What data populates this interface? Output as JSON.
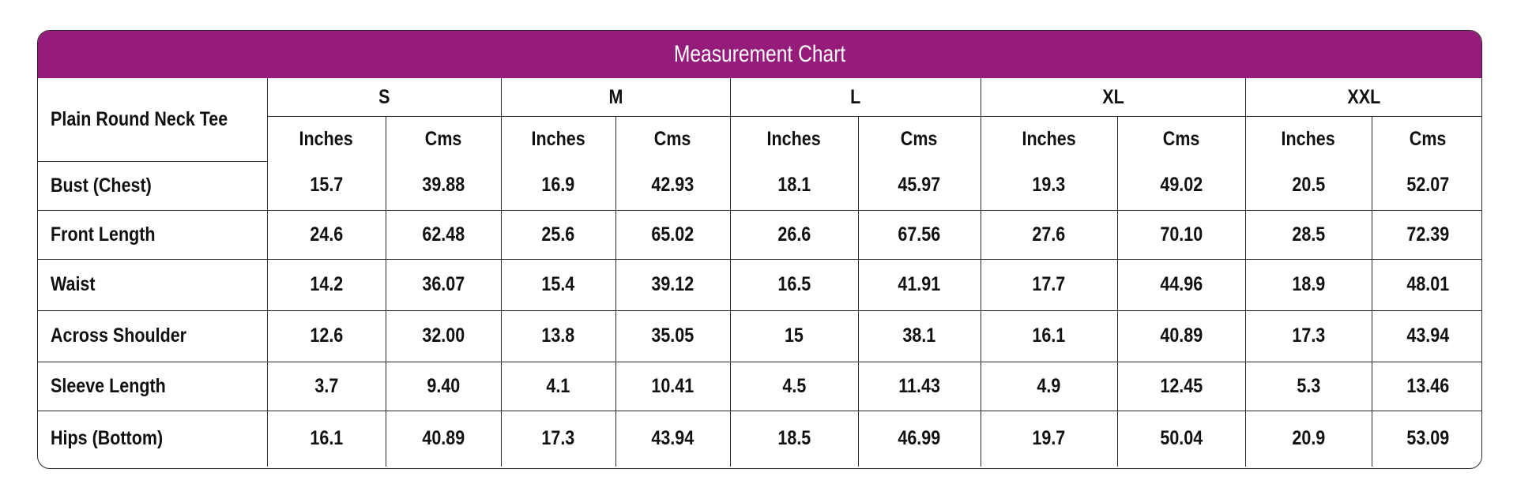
{
  "title": "Measurement Chart",
  "product_label": "Plain Round Neck Tee",
  "sizes": [
    "S",
    "M",
    "L",
    "XL",
    "XXL"
  ],
  "units": [
    "Inches",
    "Cms"
  ],
  "rows": [
    {
      "label": "Bust (Chest)",
      "values": [
        "15.7",
        "39.88",
        "16.9",
        "42.93",
        "18.1",
        "45.97",
        "19.3",
        "49.02",
        "20.5",
        "52.07"
      ]
    },
    {
      "label": "Front Length",
      "values": [
        "24.6",
        "62.48",
        "25.6",
        "65.02",
        "26.6",
        "67.56",
        "27.6",
        "70.10",
        "28.5",
        "72.39"
      ]
    },
    {
      "label": "Waist",
      "values": [
        "14.2",
        "36.07",
        "15.4",
        "39.12",
        "16.5",
        "41.91",
        "17.7",
        "44.96",
        "18.9",
        "48.01"
      ]
    },
    {
      "label": "Across Shoulder",
      "values": [
        "12.6",
        "32.00",
        "13.8",
        "35.05",
        "15",
        "38.1",
        "16.1",
        "40.89",
        "17.3",
        "43.94"
      ]
    },
    {
      "label": "Sleeve Length",
      "values": [
        "3.7",
        "9.40",
        "4.1",
        "10.41",
        "4.5",
        "11.43",
        "4.9",
        "12.45",
        "5.3",
        "13.46"
      ]
    },
    {
      "label": "Hips (Bottom)",
      "values": [
        "16.1",
        "40.89",
        "17.3",
        "43.94",
        "18.5",
        "46.99",
        "19.7",
        "50.04",
        "20.9",
        "53.09"
      ]
    }
  ],
  "colors": {
    "title_bar": "#961c7b",
    "title_text": "#ffffff",
    "border": "#2a2a2a"
  }
}
